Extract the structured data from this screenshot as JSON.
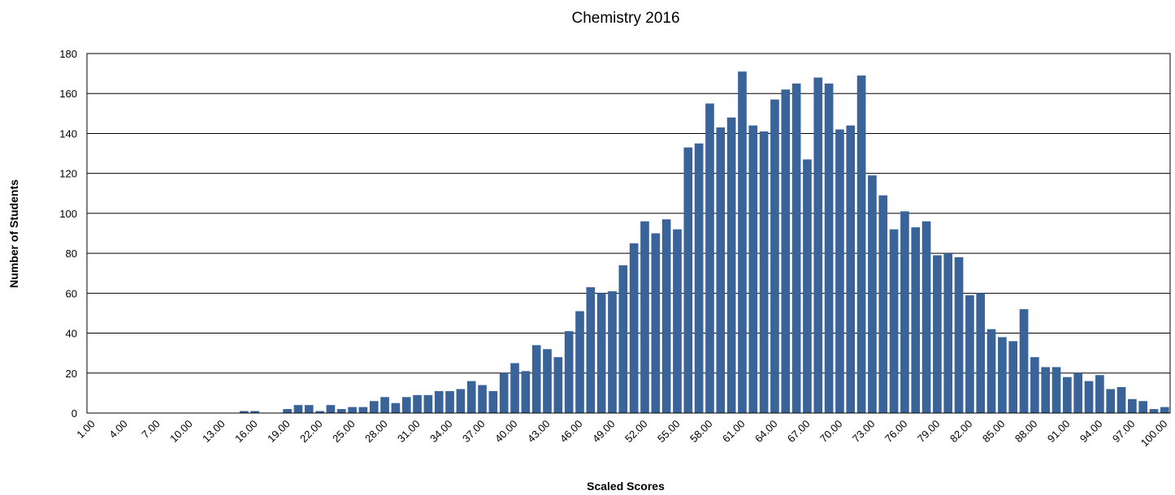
{
  "chart_data": {
    "type": "bar",
    "title": "Chemistry 2016",
    "x_label": "Scaled Scores",
    "y_label": "Number of Students",
    "categories": [
      "1.00",
      null,
      null,
      "4.00",
      null,
      null,
      "7.00",
      null,
      null,
      "10.00",
      null,
      null,
      "13.00",
      null,
      null,
      "16.00",
      null,
      null,
      "19.00",
      null,
      null,
      "22.00",
      null,
      null,
      "25.00",
      null,
      null,
      "28.00",
      null,
      null,
      "31.00",
      null,
      null,
      "34.00",
      null,
      null,
      "37.00",
      null,
      null,
      "40.00",
      null,
      null,
      "43.00",
      null,
      null,
      "46.00",
      null,
      null,
      "49.00",
      null,
      null,
      "52.00",
      null,
      null,
      "55.00",
      null,
      null,
      "58.00",
      null,
      null,
      "61.00",
      null,
      null,
      "64.00",
      null,
      null,
      "67.00",
      null,
      null,
      "70.00",
      null,
      null,
      "73.00",
      null,
      null,
      "76.00",
      null,
      null,
      "79.00",
      null,
      null,
      "82.00",
      null,
      null,
      "85.00",
      null,
      null,
      "88.00",
      null,
      null,
      "91.00",
      null,
      null,
      "94.00",
      null,
      null,
      "97.00",
      null,
      null,
      "100.00"
    ],
    "values": [
      0,
      0,
      0,
      0,
      0,
      0,
      0,
      0,
      0,
      0,
      0,
      0,
      0,
      0,
      1,
      1,
      0,
      0,
      2,
      4,
      4,
      1,
      4,
      2,
      3,
      3,
      6,
      8,
      5,
      8,
      9,
      9,
      11,
      11,
      12,
      16,
      14,
      11,
      20,
      25,
      21,
      34,
      32,
      28,
      41,
      51,
      63,
      60,
      61,
      74,
      85,
      96,
      90,
      97,
      92,
      133,
      135,
      155,
      143,
      148,
      171,
      144,
      141,
      157,
      162,
      165,
      127,
      168,
      165,
      142,
      144,
      169,
      119,
      109,
      92,
      101,
      93,
      96,
      79,
      80,
      78,
      59,
      60,
      42,
      38,
      36,
      52,
      28,
      23,
      23,
      18,
      20,
      16,
      19,
      12,
      13,
      7,
      6,
      2,
      3
    ],
    "color": "#3a6499",
    "ylim": [
      0,
      180
    ],
    "yticks": [
      0,
      20,
      40,
      60,
      80,
      100,
      120,
      140,
      160,
      180
    ],
    "grid": true
  }
}
